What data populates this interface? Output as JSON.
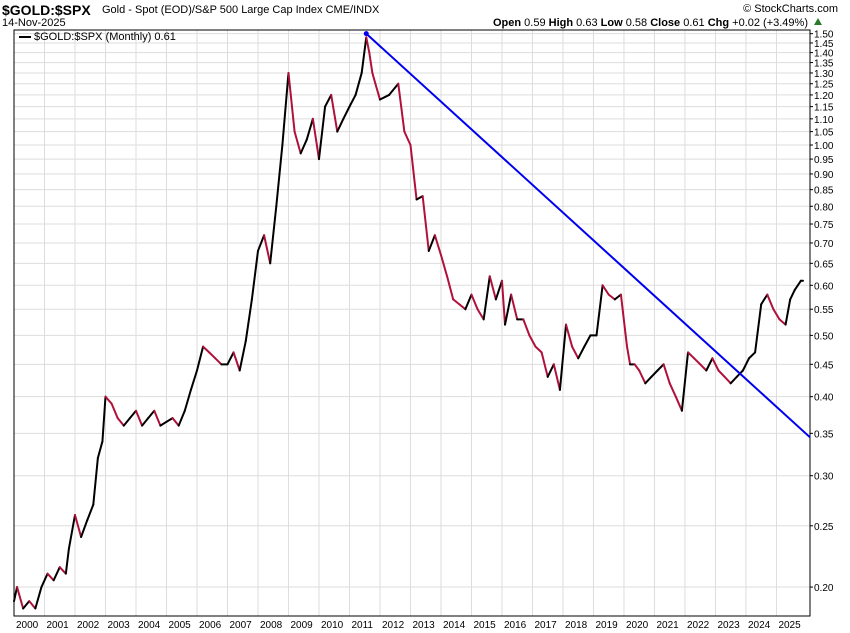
{
  "header": {
    "symbol": "$GOLD:$SPX",
    "description": "Gold - Spot (EOD)/S&P 500 Large Cap Index",
    "exchange": "CME/INDX",
    "date": "14-Nov-2025",
    "open_label": "Open",
    "open": "0.59",
    "high_label": "High",
    "high": "0.63",
    "low_label": "Low",
    "low": "0.58",
    "close_label": "Close",
    "close": "0.61",
    "chg_label": "Chg",
    "chg": "+0.02 (+3.49%)",
    "watermark": "© StockCharts.com"
  },
  "legend": {
    "label": "$GOLD:$SPX (Monthly) 0.61"
  },
  "colors": {
    "up": "#000000",
    "down": "#b0103a",
    "trendline": "#0000ee",
    "grid": "#dddddd",
    "chg_up": "#2a7a2a"
  },
  "chart_data": {
    "type": "line",
    "title": "$GOLD:$SPX",
    "scale": "log",
    "ylim": [
      0.18,
      1.52
    ],
    "xlim": [
      2000.0,
      2026.1
    ],
    "grid": true,
    "legend_position": "top-left",
    "yticks": [
      0.2,
      0.25,
      0.3,
      0.35,
      0.4,
      0.45,
      0.5,
      0.55,
      0.6,
      0.65,
      0.7,
      0.75,
      0.8,
      0.85,
      0.9,
      0.95,
      1.0,
      1.05,
      1.1,
      1.15,
      1.2,
      1.25,
      1.3,
      1.35,
      1.4,
      1.45,
      1.5
    ],
    "ytick_labels": [
      "0.20",
      "0.25",
      "0.30",
      "0.35",
      "0.40",
      "0.45",
      "0.50",
      "0.55",
      "0.60",
      "0.65",
      "0.70",
      "0.75",
      "0.80",
      "0.85",
      "0.90",
      "0.95",
      "1.00",
      "1.05",
      "1.10",
      "1.15",
      "1.20",
      "1.25",
      "1.30",
      "1.35",
      "1.40",
      "1.45",
      "1.50"
    ],
    "xticks": [
      2000,
      2001,
      2002,
      2003,
      2004,
      2005,
      2006,
      2007,
      2008,
      2009,
      2010,
      2011,
      2012,
      2013,
      2014,
      2015,
      2016,
      2017,
      2018,
      2019,
      2020,
      2021,
      2022,
      2023,
      2024,
      2025
    ],
    "xtick_labels": [
      "2000",
      "2001",
      "2002",
      "2003",
      "2004",
      "2005",
      "2006",
      "2007",
      "2008",
      "2009",
      "2010",
      "2011",
      "2012",
      "2013",
      "2014",
      "2015",
      "2016",
      "2017",
      "2018",
      "2019",
      "2020",
      "2021",
      "2022",
      "2023",
      "2024",
      "2025"
    ],
    "series": [
      {
        "name": "$GOLD:$SPX (Monthly)",
        "x": [
          2000.0,
          2000.1,
          2000.3,
          2000.5,
          2000.7,
          2000.9,
          2001.1,
          2001.3,
          2001.5,
          2001.7,
          2001.8,
          2002.0,
          2002.2,
          2002.4,
          2002.6,
          2002.75,
          2002.9,
          2003.0,
          2003.2,
          2003.4,
          2003.6,
          2003.8,
          2004.0,
          2004.2,
          2004.4,
          2004.6,
          2004.8,
          2005.0,
          2005.2,
          2005.4,
          2005.6,
          2005.8,
          2006.0,
          2006.2,
          2006.4,
          2006.6,
          2006.8,
          2007.0,
          2007.2,
          2007.4,
          2007.6,
          2007.8,
          2008.0,
          2008.2,
          2008.4,
          2008.6,
          2008.8,
          2009.0,
          2009.2,
          2009.4,
          2009.6,
          2009.8,
          2010.0,
          2010.2,
          2010.4,
          2010.6,
          2010.8,
          2011.0,
          2011.2,
          2011.4,
          2011.55,
          2011.65,
          2011.75,
          2011.85,
          2012.0,
          2012.3,
          2012.6,
          2012.8,
          2013.0,
          2013.2,
          2013.4,
          2013.6,
          2013.8,
          2014.0,
          2014.2,
          2014.4,
          2014.6,
          2014.8,
          2015.0,
          2015.2,
          2015.4,
          2015.6,
          2015.8,
          2016.0,
          2016.1,
          2016.3,
          2016.5,
          2016.7,
          2016.9,
          2017.1,
          2017.3,
          2017.5,
          2017.7,
          2017.9,
          2018.1,
          2018.3,
          2018.5,
          2018.7,
          2018.9,
          2019.1,
          2019.3,
          2019.5,
          2019.7,
          2019.9,
          2020.1,
          2020.2,
          2020.35,
          2020.5,
          2020.7,
          2020.9,
          2021.1,
          2021.3,
          2021.5,
          2021.7,
          2021.9,
          2022.1,
          2022.3,
          2022.5,
          2022.7,
          2022.9,
          2023.1,
          2023.3,
          2023.5,
          2023.7,
          2023.9,
          2024.1,
          2024.3,
          2024.5,
          2024.7,
          2024.9,
          2025.1,
          2025.3,
          2025.45,
          2025.6,
          2025.8,
          2025.87
        ],
        "values": [
          0.19,
          0.2,
          0.185,
          0.19,
          0.185,
          0.2,
          0.21,
          0.205,
          0.215,
          0.21,
          0.23,
          0.26,
          0.24,
          0.255,
          0.27,
          0.32,
          0.34,
          0.4,
          0.39,
          0.37,
          0.36,
          0.37,
          0.38,
          0.36,
          0.37,
          0.38,
          0.36,
          0.365,
          0.37,
          0.36,
          0.38,
          0.41,
          0.44,
          0.48,
          0.47,
          0.46,
          0.45,
          0.45,
          0.47,
          0.44,
          0.49,
          0.57,
          0.68,
          0.72,
          0.65,
          0.8,
          1.0,
          1.3,
          1.05,
          0.97,
          1.02,
          1.1,
          0.95,
          1.15,
          1.2,
          1.05,
          1.1,
          1.15,
          1.2,
          1.3,
          1.48,
          1.4,
          1.3,
          1.25,
          1.18,
          1.2,
          1.25,
          1.05,
          1.0,
          0.82,
          0.83,
          0.68,
          0.72,
          0.67,
          0.62,
          0.57,
          0.56,
          0.55,
          0.58,
          0.55,
          0.53,
          0.62,
          0.57,
          0.61,
          0.52,
          0.58,
          0.53,
          0.53,
          0.5,
          0.48,
          0.47,
          0.43,
          0.45,
          0.41,
          0.52,
          0.48,
          0.46,
          0.48,
          0.5,
          0.5,
          0.6,
          0.58,
          0.57,
          0.58,
          0.48,
          0.45,
          0.45,
          0.44,
          0.42,
          0.43,
          0.44,
          0.45,
          0.42,
          0.4,
          0.38,
          0.47,
          0.46,
          0.45,
          0.44,
          0.46,
          0.44,
          0.43,
          0.42,
          0.43,
          0.44,
          0.46,
          0.47,
          0.56,
          0.58,
          0.55,
          0.53,
          0.52,
          0.57,
          0.59,
          0.61,
          0.61
        ]
      },
      {
        "name": "",
        "values": [
          1.5,
          0.345
        ],
        "x": [
          2011.55,
          2026.1
        ]
      }
    ]
  }
}
